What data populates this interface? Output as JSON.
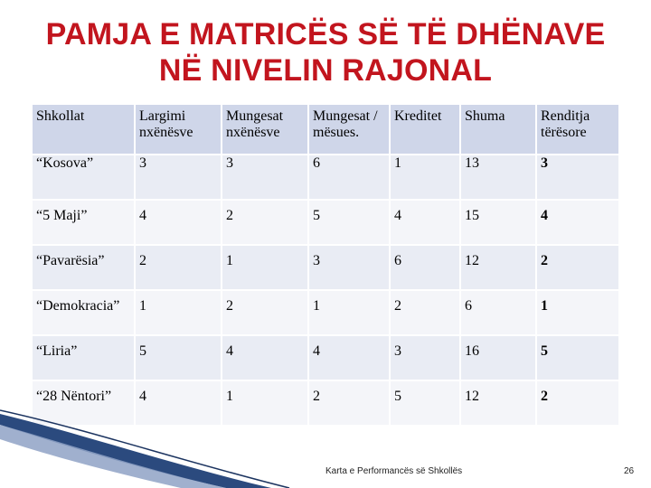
{
  "title": {
    "line1": "PAMJA E MATRICËS SË TË DHËNAVE",
    "line2": "NË NIVELIN RAJONAL"
  },
  "table": {
    "headers": [
      "Shkollat",
      "Largimi nxënësve",
      "Mungesat nxënësve",
      "Mungesat / mësues.",
      "Kreditet",
      "Shuma",
      "Renditja tërësore"
    ],
    "rows": [
      [
        "“Kosova”",
        "3",
        "3",
        "6",
        "1",
        "13",
        "3"
      ],
      [
        "“5 Maji”",
        "4",
        "2",
        "5",
        "4",
        "15",
        "4"
      ],
      [
        "“Pavarësia”",
        "2",
        "1",
        "3",
        "6",
        "12",
        "2"
      ],
      [
        "“Demokracia”",
        "1",
        "2",
        "1",
        "2",
        "6",
        "1"
      ],
      [
        "“Liria”",
        "5",
        "4",
        "4",
        "3",
        "16",
        "5"
      ],
      [
        "“28 Nëntori”",
        "4",
        "1",
        "2",
        "5",
        "12",
        "2"
      ]
    ]
  },
  "footer": {
    "caption": "Karta e Performancës së Shkollës",
    "page_number": "26"
  },
  "colors": {
    "title": "#c2151e",
    "header_bg": "#cfd6e9",
    "row_bg": "#e9ecf4",
    "accent_swoosh": "#2b4a7e"
  }
}
